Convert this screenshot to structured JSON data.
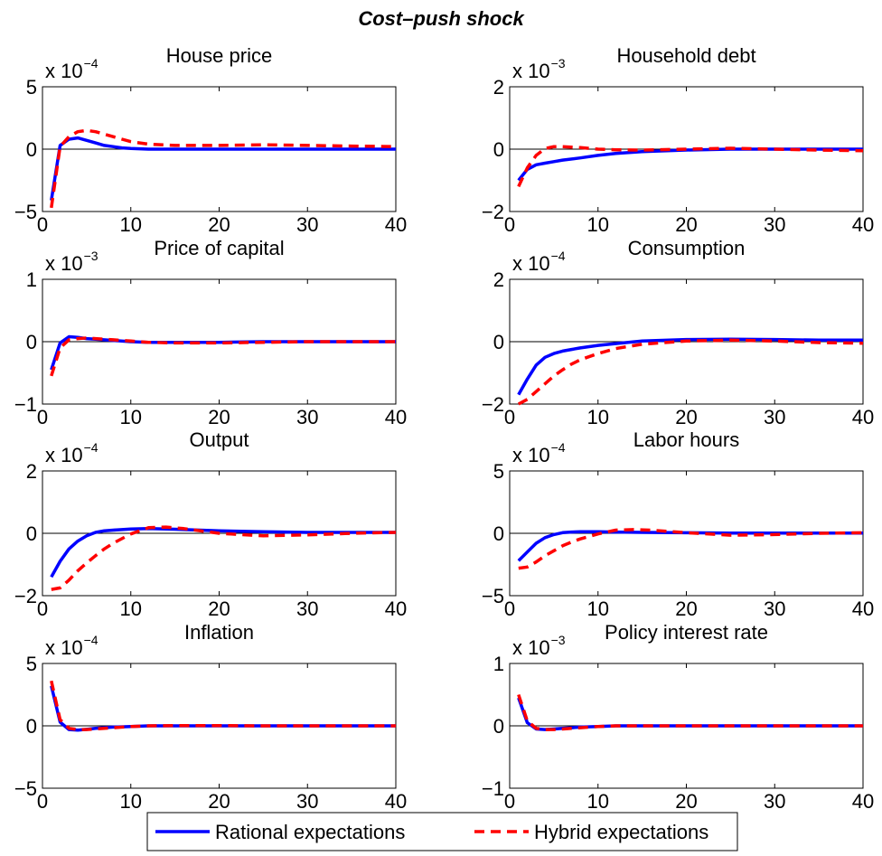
{
  "figure": {
    "title": "Cost–push shock",
    "legend": {
      "placement": "bottom-center",
      "entries": [
        "Rational expectations",
        "Hybrid expectations"
      ]
    }
  },
  "colors": {
    "rational": "#0000ff",
    "hybrid": "#ff0000",
    "axis": "#000000"
  },
  "chart_data": [
    {
      "type": "line",
      "title": "House price",
      "multiplier": "x 10",
      "exponent": "−4",
      "xlim": [
        0,
        40
      ],
      "ylim": [
        -5,
        5
      ],
      "xticks": [
        0,
        10,
        20,
        30,
        40
      ],
      "yticks": [
        -5,
        0,
        5
      ],
      "ytick_labels": [
        "−5",
        "0",
        "5"
      ],
      "zero_line": true,
      "series": [
        {
          "name": "Rational expectations",
          "style": "solid",
          "x": [
            1,
            2,
            3,
            4,
            5,
            6,
            7,
            8,
            9,
            10,
            12,
            15,
            20,
            25,
            30,
            35,
            40
          ],
          "y": [
            -4.1,
            0.3,
            0.8,
            0.9,
            0.7,
            0.5,
            0.3,
            0.2,
            0.1,
            0.05,
            0,
            0,
            0,
            0,
            0,
            0,
            0
          ]
        },
        {
          "name": "Hybrid expectations",
          "style": "dashed",
          "x": [
            1,
            2,
            3,
            4,
            5,
            6,
            7,
            8,
            9,
            10,
            12,
            15,
            20,
            25,
            30,
            35,
            40
          ],
          "y": [
            -4.7,
            0.2,
            1.0,
            1.4,
            1.5,
            1.4,
            1.2,
            1.0,
            0.8,
            0.6,
            0.4,
            0.3,
            0.3,
            0.35,
            0.3,
            0.25,
            0.2
          ]
        }
      ]
    },
    {
      "type": "line",
      "title": "Household debt",
      "multiplier": "x 10",
      "exponent": "−3",
      "xlim": [
        0,
        40
      ],
      "ylim": [
        -2,
        2
      ],
      "xticks": [
        0,
        10,
        20,
        30,
        40
      ],
      "yticks": [
        -2,
        0,
        2
      ],
      "ytick_labels": [
        "−2",
        "0",
        "2"
      ],
      "zero_line": true,
      "series": [
        {
          "name": "Rational expectations",
          "style": "solid",
          "x": [
            1,
            2,
            3,
            4,
            5,
            6,
            8,
            10,
            12,
            15,
            20,
            25,
            30,
            35,
            40
          ],
          "y": [
            -1.0,
            -0.65,
            -0.5,
            -0.45,
            -0.4,
            -0.35,
            -0.28,
            -0.2,
            -0.14,
            -0.08,
            -0.03,
            0,
            0,
            0,
            0
          ]
        },
        {
          "name": "Hybrid expectations",
          "style": "dashed",
          "x": [
            1,
            2,
            3,
            4,
            5,
            6,
            8,
            10,
            12,
            15,
            20,
            25,
            30,
            35,
            40
          ],
          "y": [
            -1.2,
            -0.6,
            -0.2,
            0.02,
            0.08,
            0.08,
            0.05,
            0.0,
            -0.02,
            -0.03,
            0.0,
            0.03,
            0.0,
            -0.03,
            -0.05
          ]
        }
      ]
    },
    {
      "type": "line",
      "title": "Price of capital",
      "multiplier": "x 10",
      "exponent": "−3",
      "xlim": [
        0,
        40
      ],
      "ylim": [
        -1,
        1
      ],
      "xticks": [
        0,
        10,
        20,
        30,
        40
      ],
      "yticks": [
        -1,
        0,
        1
      ],
      "ytick_labels": [
        "−1",
        "0",
        "1"
      ],
      "zero_line": true,
      "series": [
        {
          "name": "Rational expectations",
          "style": "solid",
          "x": [
            1,
            2,
            3,
            4,
            5,
            6,
            8,
            10,
            12,
            15,
            20,
            25,
            30,
            35,
            40
          ],
          "y": [
            -0.45,
            -0.02,
            0.08,
            0.07,
            0.05,
            0.04,
            0.02,
            0.0,
            -0.01,
            -0.01,
            -0.01,
            0,
            0,
            0,
            0
          ]
        },
        {
          "name": "Hybrid expectations",
          "style": "dashed",
          "x": [
            1,
            2,
            3,
            4,
            5,
            6,
            8,
            10,
            12,
            15,
            20,
            25,
            30,
            35,
            40
          ],
          "y": [
            -0.55,
            -0.1,
            0.03,
            0.05,
            0.06,
            0.05,
            0.03,
            0.01,
            -0.01,
            -0.02,
            -0.02,
            -0.01,
            0,
            0,
            0
          ]
        }
      ]
    },
    {
      "type": "line",
      "title": "Consumption",
      "multiplier": "x 10",
      "exponent": "−4",
      "xlim": [
        0,
        40
      ],
      "ylim": [
        -2,
        2
      ],
      "xticks": [
        0,
        10,
        20,
        30,
        40
      ],
      "yticks": [
        -2,
        0,
        2
      ],
      "ytick_labels": [
        "−2",
        "0",
        "2"
      ],
      "zero_line": true,
      "series": [
        {
          "name": "Rational expectations",
          "style": "solid",
          "x": [
            1,
            2,
            3,
            4,
            5,
            6,
            7,
            8,
            10,
            12,
            15,
            20,
            25,
            30,
            35,
            40
          ],
          "y": [
            -1.7,
            -1.2,
            -0.75,
            -0.5,
            -0.38,
            -0.3,
            -0.25,
            -0.2,
            -0.12,
            -0.06,
            0.02,
            0.07,
            0.08,
            0.07,
            0.05,
            0.05
          ]
        },
        {
          "name": "Hybrid expectations",
          "style": "dashed",
          "x": [
            1,
            2,
            3,
            4,
            5,
            6,
            7,
            8,
            10,
            12,
            15,
            20,
            25,
            30,
            35,
            40
          ],
          "y": [
            -2.0,
            -1.85,
            -1.6,
            -1.35,
            -1.1,
            -0.9,
            -0.72,
            -0.58,
            -0.38,
            -0.22,
            -0.08,
            0.02,
            0.05,
            0.02,
            -0.03,
            -0.05
          ]
        }
      ]
    },
    {
      "type": "line",
      "title": "Output",
      "multiplier": "x 10",
      "exponent": "−4",
      "xlim": [
        0,
        40
      ],
      "ylim": [
        -2,
        2
      ],
      "xticks": [
        0,
        10,
        20,
        30,
        40
      ],
      "yticks": [
        -2,
        0,
        2
      ],
      "ytick_labels": [
        "−2",
        "0",
        "2"
      ],
      "zero_line": true,
      "series": [
        {
          "name": "Rational expectations",
          "style": "solid",
          "x": [
            1,
            2,
            3,
            4,
            5,
            6,
            7,
            8,
            10,
            12,
            15,
            20,
            25,
            30,
            35,
            40
          ],
          "y": [
            -1.4,
            -0.9,
            -0.5,
            -0.25,
            -0.08,
            0.03,
            0.08,
            0.1,
            0.14,
            0.15,
            0.13,
            0.08,
            0.05,
            0.03,
            0.03,
            0.03
          ]
        },
        {
          "name": "Hybrid expectations",
          "style": "dashed",
          "x": [
            1,
            2,
            3,
            4,
            5,
            6,
            7,
            8,
            10,
            12,
            14,
            16,
            20,
            25,
            30,
            35,
            40
          ],
          "y": [
            -1.8,
            -1.75,
            -1.5,
            -1.2,
            -0.95,
            -0.72,
            -0.5,
            -0.32,
            -0.02,
            0.18,
            0.2,
            0.15,
            0.0,
            -0.08,
            -0.05,
            0.0,
            0.03
          ]
        }
      ]
    },
    {
      "type": "line",
      "title": "Labor hours",
      "multiplier": "x 10",
      "exponent": "−4",
      "xlim": [
        0,
        40
      ],
      "ylim": [
        -5,
        5
      ],
      "xticks": [
        0,
        10,
        20,
        30,
        40
      ],
      "yticks": [
        -5,
        0,
        5
      ],
      "ytick_labels": [
        "−5",
        "0",
        "5"
      ],
      "zero_line": true,
      "series": [
        {
          "name": "Rational expectations",
          "style": "solid",
          "x": [
            1,
            2,
            3,
            4,
            5,
            6,
            7,
            8,
            10,
            12,
            15,
            20,
            25,
            30,
            35,
            40
          ],
          "y": [
            -2.2,
            -1.5,
            -0.8,
            -0.35,
            -0.1,
            0.05,
            0.1,
            0.12,
            0.12,
            0.1,
            0.07,
            0.04,
            0.02,
            0.02,
            0.02,
            0.02
          ]
        },
        {
          "name": "Hybrid expectations",
          "style": "dashed",
          "x": [
            1,
            2,
            3,
            4,
            5,
            6,
            7,
            8,
            10,
            12,
            14,
            16,
            20,
            25,
            30,
            35,
            40
          ],
          "y": [
            -2.8,
            -2.7,
            -2.3,
            -1.8,
            -1.4,
            -1.0,
            -0.7,
            -0.45,
            -0.05,
            0.25,
            0.3,
            0.25,
            0.05,
            -0.15,
            -0.1,
            0.0,
            0.05
          ]
        }
      ]
    },
    {
      "type": "line",
      "title": "Inflation",
      "multiplier": "x 10",
      "exponent": "−4",
      "xlim": [
        0,
        40
      ],
      "ylim": [
        -5,
        5
      ],
      "xticks": [
        0,
        10,
        20,
        30,
        40
      ],
      "yticks": [
        -5,
        0,
        5
      ],
      "ytick_labels": [
        "−5",
        "0",
        "5"
      ],
      "zero_line": true,
      "series": [
        {
          "name": "Rational expectations",
          "style": "solid",
          "x": [
            1,
            2,
            3,
            4,
            5,
            6,
            8,
            10,
            12,
            15,
            20,
            25,
            30,
            35,
            40
          ],
          "y": [
            3.2,
            0.3,
            -0.3,
            -0.35,
            -0.28,
            -0.2,
            -0.1,
            -0.05,
            0,
            0,
            0,
            0,
            0,
            0,
            0
          ]
        },
        {
          "name": "Hybrid expectations",
          "style": "dashed",
          "x": [
            1,
            2,
            3,
            4,
            5,
            6,
            8,
            10,
            12,
            15,
            20,
            25,
            30,
            35,
            40
          ],
          "y": [
            3.6,
            0.5,
            -0.2,
            -0.3,
            -0.3,
            -0.25,
            -0.15,
            -0.05,
            0,
            0.02,
            0.02,
            0,
            0,
            0,
            0
          ]
        }
      ]
    },
    {
      "type": "line",
      "title": "Policy interest rate",
      "multiplier": "x 10",
      "exponent": "−3",
      "xlim": [
        0,
        40
      ],
      "ylim": [
        -1,
        1
      ],
      "xticks": [
        0,
        10,
        20,
        30,
        40
      ],
      "yticks": [
        -1,
        0,
        1
      ],
      "ytick_labels": [
        "−1",
        "0",
        "1"
      ],
      "zero_line": true,
      "series": [
        {
          "name": "Rational expectations",
          "style": "solid",
          "x": [
            1,
            2,
            3,
            4,
            5,
            6,
            8,
            10,
            12,
            15,
            20,
            25,
            30,
            35,
            40
          ],
          "y": [
            0.45,
            0.05,
            -0.05,
            -0.06,
            -0.05,
            -0.04,
            -0.02,
            -0.01,
            0,
            0,
            0,
            0,
            0,
            0,
            0
          ]
        },
        {
          "name": "Hybrid expectations",
          "style": "dashed",
          "x": [
            1,
            2,
            3,
            4,
            5,
            6,
            8,
            10,
            12,
            15,
            20,
            25,
            30,
            35,
            40
          ],
          "y": [
            0.5,
            0.08,
            -0.04,
            -0.06,
            -0.06,
            -0.05,
            -0.03,
            -0.01,
            0,
            0,
            0,
            0,
            0,
            0,
            0
          ]
        }
      ]
    }
  ]
}
